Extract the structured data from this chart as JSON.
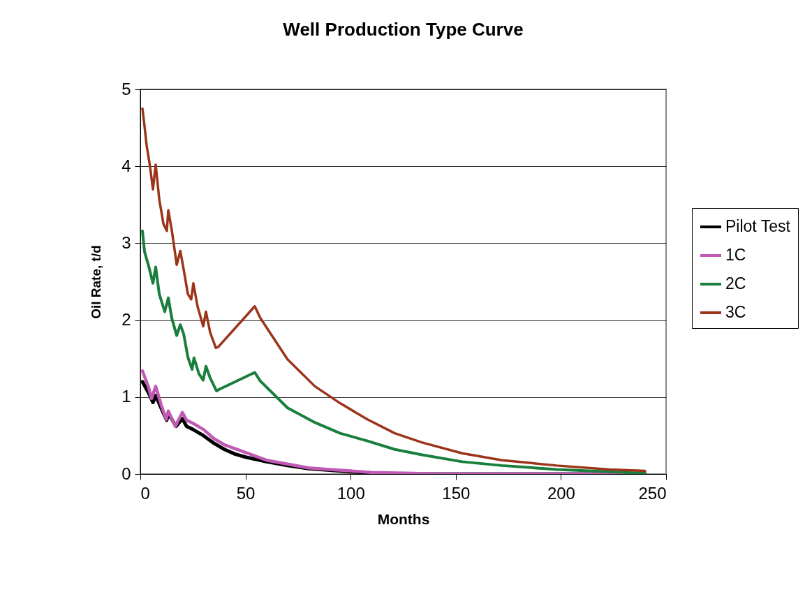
{
  "chart_data": {
    "type": "line",
    "title": "Well Production Type Curve",
    "xlabel": "Months",
    "ylabel": "Oil Rate, t/d",
    "xlim": [
      0,
      250
    ],
    "xticks": [
      0,
      50,
      100,
      150,
      200,
      250
    ],
    "ylim": [
      0,
      5
    ],
    "yticks": [
      0,
      1,
      2,
      3,
      4,
      5
    ],
    "grid": "y",
    "legend": "right",
    "line_style": "solid",
    "marker": "none",
    "series": [
      {
        "name": "Pilot Test",
        "color": "#000000",
        "x": [
          1,
          4,
          6,
          7.3,
          10,
          12.5,
          13.5,
          17,
          20,
          22,
          25,
          30,
          35,
          40,
          45,
          50,
          60,
          70,
          80,
          90,
          100,
          110,
          130,
          240
        ],
        "values": [
          1.2,
          1.05,
          0.93,
          1.02,
          0.85,
          0.7,
          0.78,
          0.62,
          0.72,
          0.62,
          0.58,
          0.5,
          0.4,
          0.32,
          0.26,
          0.22,
          0.16,
          0.11,
          0.07,
          0.05,
          0.03,
          0.01,
          0,
          0
        ]
      },
      {
        "name": "1C",
        "color": "#c05ab4",
        "x": [
          1,
          4,
          5.3,
          7.3,
          10,
          12.3,
          13.3,
          16.6,
          20,
          22,
          25,
          30,
          35,
          40,
          45,
          50,
          60,
          70,
          80,
          90,
          100,
          110,
          130,
          140,
          240
        ],
        "values": [
          1.34,
          1.12,
          0.98,
          1.14,
          0.89,
          0.71,
          0.82,
          0.62,
          0.8,
          0.7,
          0.66,
          0.58,
          0.46,
          0.38,
          0.33,
          0.28,
          0.18,
          0.13,
          0.08,
          0.06,
          0.04,
          0.02,
          0.01,
          0,
          0
        ]
      },
      {
        "name": "2C",
        "color": "#1a7f3c",
        "x": [
          1,
          2,
          4,
          6,
          7.3,
          9,
          11.6,
          13.3,
          15,
          17.3,
          19,
          20.6,
          22.6,
          24.6,
          25.5,
          27.9,
          29.9,
          31.2,
          33.2,
          36.2,
          37.5,
          54.4,
          57,
          70,
          83,
          95,
          108,
          121,
          134,
          153,
          172,
          198,
          223,
          240
        ],
        "values": [
          3.16,
          2.89,
          2.7,
          2.48,
          2.69,
          2.34,
          2.11,
          2.29,
          2.02,
          1.8,
          1.94,
          1.82,
          1.52,
          1.36,
          1.51,
          1.3,
          1.22,
          1.4,
          1.25,
          1.08,
          1.1,
          1.32,
          1.21,
          0.86,
          0.67,
          0.53,
          0.43,
          0.32,
          0.25,
          0.16,
          0.11,
          0.06,
          0.03,
          0.01
        ]
      },
      {
        "name": "3C",
        "color": "#9c3419",
        "x": [
          1,
          2,
          3,
          4.6,
          6,
          7.3,
          9,
          11,
          12.6,
          13.3,
          15,
          17.3,
          19,
          20.6,
          22.6,
          24.2,
          25.2,
          27.2,
          29.9,
          31.2,
          33.2,
          35.9,
          37,
          54.4,
          57,
          70,
          83,
          95,
          108,
          121,
          134,
          153,
          172,
          198,
          223,
          240
        ],
        "values": [
          4.75,
          4.52,
          4.27,
          4.0,
          3.7,
          4.02,
          3.57,
          3.25,
          3.16,
          3.43,
          3.16,
          2.72,
          2.9,
          2.66,
          2.34,
          2.27,
          2.48,
          2.18,
          1.92,
          2.11,
          1.84,
          1.64,
          1.65,
          2.18,
          2.03,
          1.49,
          1.14,
          0.92,
          0.71,
          0.53,
          0.41,
          0.27,
          0.18,
          0.11,
          0.06,
          0.04
        ]
      }
    ]
  }
}
